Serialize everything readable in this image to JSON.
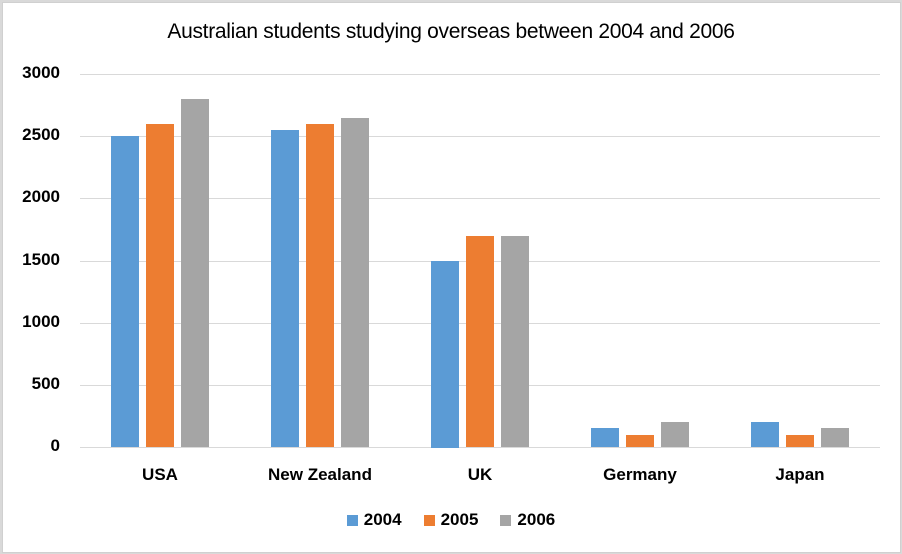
{
  "chart_data": {
    "type": "bar",
    "title": "Australian students studying overseas between 2004 and 2006",
    "xlabel": "",
    "ylabel": "",
    "ylim": [
      0,
      3000
    ],
    "yticks": [
      "0",
      "500",
      "1000",
      "1500",
      "2000",
      "2500",
      "3000"
    ],
    "categories": [
      "USA",
      "New Zealand",
      "UK",
      "Germany",
      "Japan"
    ],
    "series": [
      {
        "name": "2004",
        "color": "#5b9bd5",
        "values": [
          2500,
          2550,
          1500,
          150,
          200
        ]
      },
      {
        "name": "2005",
        "color": "#ed7d31",
        "values": [
          2600,
          2600,
          1700,
          100,
          100
        ]
      },
      {
        "name": "2006",
        "color": "#a5a5a5",
        "values": [
          2800,
          2650,
          1700,
          200,
          150
        ]
      }
    ],
    "grid": true,
    "legend_position": "bottom"
  }
}
